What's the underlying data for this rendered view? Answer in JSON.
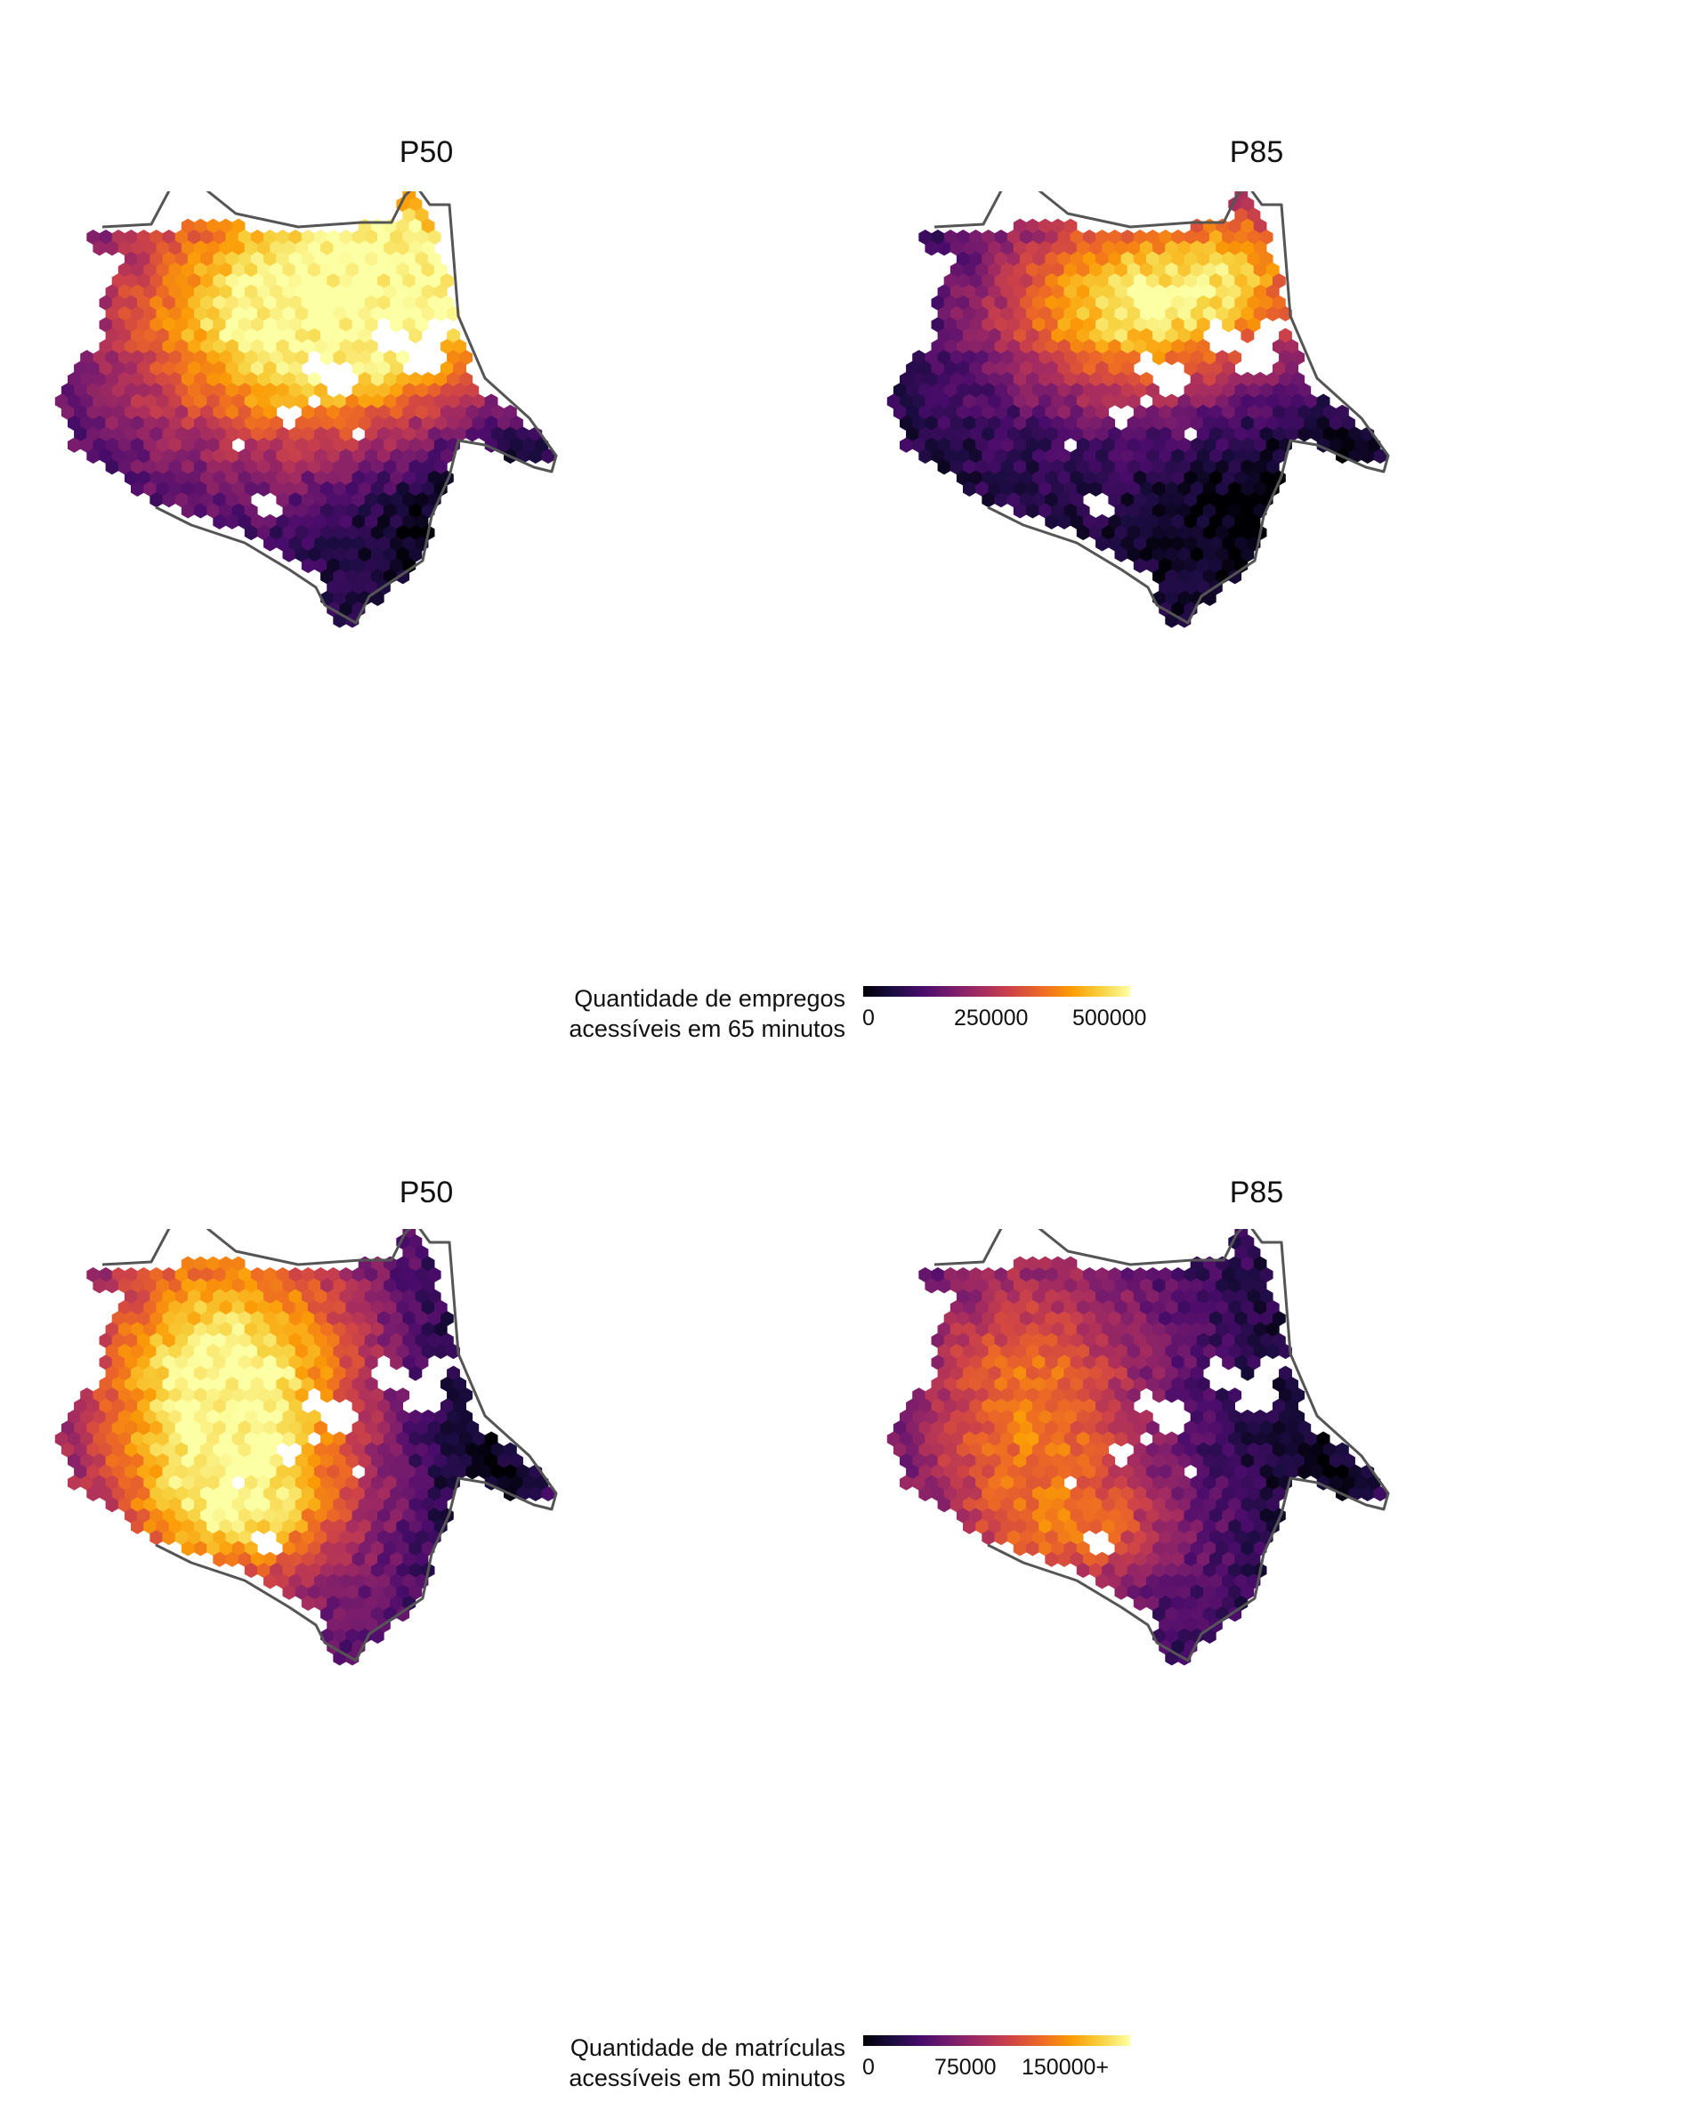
{
  "maps": {
    "top": {
      "panel_left_title": "P50",
      "panel_right_title": "P85",
      "legend": {
        "title_line1": "Quantidade de empregos",
        "title_line2": "acessíveis em 65 minutos",
        "ticks": [
          "0",
          "250000",
          "500000"
        ],
        "domain": [
          0,
          560000
        ]
      }
    },
    "bottom": {
      "panel_left_title": "P50",
      "panel_right_title": "P85",
      "legend": {
        "title_line1": "Quantidade de matrículas",
        "title_line2": "acessíveis em 50 minutos",
        "ticks": [
          "0",
          "75000",
          "150000+"
        ],
        "domain": [
          0,
          160000
        ]
      }
    }
  },
  "colors": {
    "colormap": "inferno",
    "stops": [
      "#000004",
      "#1b0c41",
      "#4a0c6b",
      "#781c6d",
      "#a52c60",
      "#cf4446",
      "#ed6925",
      "#fb9b06",
      "#f7d13d",
      "#fcffa4"
    ],
    "boundary": "#555555"
  }
}
